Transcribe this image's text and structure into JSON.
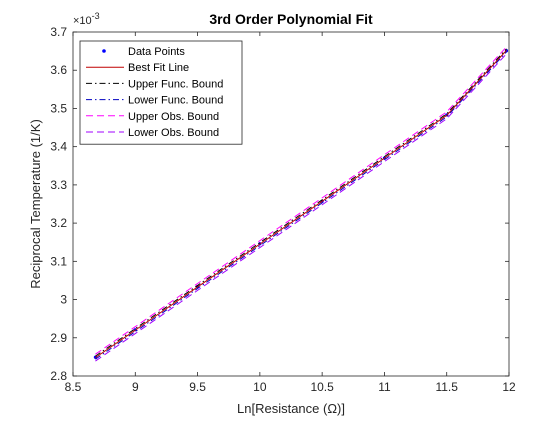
{
  "chart_data": {
    "type": "line",
    "title": "3rd Order Polynomial Fit",
    "xlabel": "Ln[Resistance (Ω)]",
    "ylabel": "Reciprocal Temperature (1/K)",
    "y_multiplier_label": "×10",
    "y_multiplier_exponent": "-3",
    "xlim": [
      8.5,
      12
    ],
    "ylim": [
      2.8,
      3.7
    ],
    "x_ticks": [
      "8.5",
      "9",
      "9.5",
      "10",
      "10.5",
      "11",
      "11.5",
      "12"
    ],
    "y_ticks": [
      "2.8",
      "2.9",
      "3",
      "3.1",
      "3.2",
      "3.3",
      "3.4",
      "3.5",
      "3.6",
      "3.7"
    ],
    "grid": false,
    "legend_position": "top-left",
    "series": [
      {
        "name": "Data Points",
        "style": "markers",
        "color": "#0000ff",
        "x": [
          8.68,
          9.0,
          9.5,
          10.0,
          10.5,
          11.0,
          11.5,
          11.98
        ],
        "y": [
          2.849,
          2.921,
          3.034,
          3.146,
          3.257,
          3.37,
          3.483,
          3.651
        ]
      },
      {
        "name": "Best Fit Line",
        "style": "solid",
        "color": "#c00000",
        "x": [
          8.68,
          9.0,
          9.5,
          10.0,
          10.5,
          11.0,
          11.5,
          11.98
        ],
        "y": [
          2.848,
          2.92,
          3.033,
          3.145,
          3.257,
          3.37,
          3.482,
          3.652
        ]
      },
      {
        "name": "Upper Func. Bound",
        "style": "dashdot",
        "color": "#000000",
        "x": [
          8.68,
          9.0,
          9.5,
          10.0,
          10.5,
          11.0,
          11.5,
          11.98
        ],
        "y": [
          2.852,
          2.924,
          3.037,
          3.149,
          3.261,
          3.374,
          3.486,
          3.656
        ]
      },
      {
        "name": "Lower Func. Bound",
        "style": "dashdot",
        "color": "#0000c0",
        "x": [
          8.68,
          9.0,
          9.5,
          10.0,
          10.5,
          11.0,
          11.5,
          11.98
        ],
        "y": [
          2.844,
          2.916,
          3.029,
          3.141,
          3.253,
          3.366,
          3.478,
          3.648
        ]
      },
      {
        "name": "Upper Obs. Bound",
        "style": "dashed",
        "color": "#ff00ff",
        "x": [
          8.68,
          9.0,
          9.5,
          10.0,
          10.5,
          11.0,
          11.5,
          11.98
        ],
        "y": [
          2.857,
          2.929,
          3.042,
          3.154,
          3.266,
          3.379,
          3.491,
          3.661
        ]
      },
      {
        "name": "Lower Obs. Bound",
        "style": "dashed",
        "color": "#a000ff",
        "x": [
          8.68,
          9.0,
          9.5,
          10.0,
          10.5,
          11.0,
          11.5,
          11.98
        ],
        "y": [
          2.839,
          2.911,
          3.024,
          3.136,
          3.248,
          3.361,
          3.473,
          3.643
        ]
      }
    ]
  }
}
